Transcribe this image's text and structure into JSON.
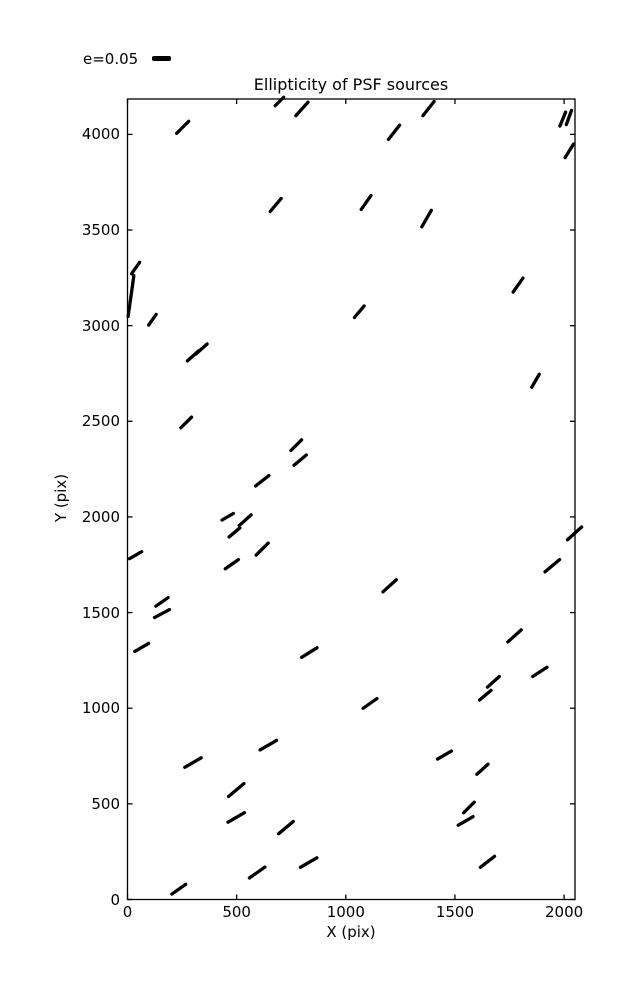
{
  "figure": {
    "title": "Ellipticity of PSF sources",
    "xlabel": "X (pix)",
    "ylabel": "Y (pix)",
    "legend_label": "e=0.05",
    "background": "#ffffff",
    "line_color": "#000000"
  },
  "chart_data": {
    "type": "scatter",
    "subtype": "ellipticity-whisker-map",
    "title": "Ellipticity of PSF sources",
    "xlabel": "X (pix)",
    "ylabel": "Y (pix)",
    "xlim": [
      0,
      2050
    ],
    "ylim": [
      0,
      4185
    ],
    "x_ticks": [
      0,
      500,
      1000,
      1500,
      2000
    ],
    "y_ticks": [
      0,
      500,
      1000,
      1500,
      2000,
      2500,
      3000,
      3500,
      4000
    ],
    "grid": false,
    "legend": {
      "label": "e=0.05",
      "position": "upper-left-outside"
    },
    "segment_color": "#000000",
    "segments": [
      {
        "x": 253,
        "y": 4037,
        "angle": 45,
        "len": 17
      },
      {
        "x": 696,
        "y": 4172,
        "angle": 45,
        "len": 12
      },
      {
        "x": 799,
        "y": 4133,
        "angle": 48,
        "len": 18
      },
      {
        "x": 1379,
        "y": 4135,
        "angle": 52,
        "len": 18
      },
      {
        "x": 1221,
        "y": 4011,
        "angle": 52,
        "len": 18
      },
      {
        "x": 1994,
        "y": 4080,
        "angle": 68,
        "len": 15
      },
      {
        "x": 2022,
        "y": 4088,
        "angle": 70,
        "len": 15
      },
      {
        "x": 2024,
        "y": 3914,
        "angle": 58,
        "len": 16
      },
      {
        "x": 679,
        "y": 3631,
        "angle": 50,
        "len": 17
      },
      {
        "x": 1093,
        "y": 3644,
        "angle": 55,
        "len": 17
      },
      {
        "x": 1370,
        "y": 3560,
        "angle": 60,
        "len": 19
      },
      {
        "x": 37,
        "y": 3301,
        "angle": 55,
        "len": 14
      },
      {
        "x": 16,
        "y": 3155,
        "angle": 82,
        "len": 41
      },
      {
        "x": 114,
        "y": 3031,
        "angle": 55,
        "len": 13
      },
      {
        "x": 1789,
        "y": 3212,
        "angle": 55,
        "len": 17
      },
      {
        "x": 1062,
        "y": 3073,
        "angle": 50,
        "len": 15
      },
      {
        "x": 300,
        "y": 2842,
        "angle": 42,
        "len": 15
      },
      {
        "x": 339,
        "y": 2878,
        "angle": 42,
        "len": 15
      },
      {
        "x": 269,
        "y": 2494,
        "angle": 45,
        "len": 15
      },
      {
        "x": 1869,
        "y": 2712,
        "angle": 60,
        "len": 15
      },
      {
        "x": 617,
        "y": 2189,
        "angle": 38,
        "len": 17
      },
      {
        "x": 773,
        "y": 2375,
        "angle": 45,
        "len": 15
      },
      {
        "x": 791,
        "y": 2297,
        "angle": 40,
        "len": 16
      },
      {
        "x": 459,
        "y": 2001,
        "angle": 30,
        "len": 13
      },
      {
        "x": 539,
        "y": 1983,
        "angle": 42,
        "len": 16
      },
      {
        "x": 490,
        "y": 1919,
        "angle": 40,
        "len": 14
      },
      {
        "x": 37,
        "y": 1800,
        "angle": 30,
        "len": 14
      },
      {
        "x": 617,
        "y": 1832,
        "angle": 45,
        "len": 17
      },
      {
        "x": 478,
        "y": 1753,
        "angle": 35,
        "len": 16
      },
      {
        "x": 158,
        "y": 1556,
        "angle": 35,
        "len": 15
      },
      {
        "x": 158,
        "y": 1495,
        "angle": 28,
        "len": 17
      },
      {
        "x": 65,
        "y": 1318,
        "angle": 30,
        "len": 16
      },
      {
        "x": 1201,
        "y": 1640,
        "angle": 42,
        "len": 18
      },
      {
        "x": 833,
        "y": 1291,
        "angle": 32,
        "len": 18
      },
      {
        "x": 2048,
        "y": 1914,
        "angle": 42,
        "len": 19
      },
      {
        "x": 1946,
        "y": 1745,
        "angle": 40,
        "len": 19
      },
      {
        "x": 1773,
        "y": 1378,
        "angle": 42,
        "len": 18
      },
      {
        "x": 1889,
        "y": 1190,
        "angle": 33,
        "len": 17
      },
      {
        "x": 1676,
        "y": 1138,
        "angle": 42,
        "len": 16
      },
      {
        "x": 1639,
        "y": 1068,
        "angle": 40,
        "len": 15
      },
      {
        "x": 1111,
        "y": 1025,
        "angle": 35,
        "len": 17
      },
      {
        "x": 300,
        "y": 716,
        "angle": 30,
        "len": 19
      },
      {
        "x": 645,
        "y": 807,
        "angle": 30,
        "len": 19
      },
      {
        "x": 498,
        "y": 572,
        "angle": 40,
        "len": 20
      },
      {
        "x": 498,
        "y": 429,
        "angle": 30,
        "len": 19
      },
      {
        "x": 726,
        "y": 376,
        "angle": 40,
        "len": 19
      },
      {
        "x": 594,
        "y": 141,
        "angle": 35,
        "len": 19
      },
      {
        "x": 235,
        "y": 54,
        "angle": 35,
        "len": 17
      },
      {
        "x": 830,
        "y": 193,
        "angle": 30,
        "len": 19
      },
      {
        "x": 1452,
        "y": 755,
        "angle": 30,
        "len": 16
      },
      {
        "x": 1626,
        "y": 681,
        "angle": 42,
        "len": 15
      },
      {
        "x": 1564,
        "y": 481,
        "angle": 45,
        "len": 15
      },
      {
        "x": 1549,
        "y": 411,
        "angle": 30,
        "len": 17
      },
      {
        "x": 1649,
        "y": 197,
        "angle": 38,
        "len": 18
      }
    ]
  }
}
